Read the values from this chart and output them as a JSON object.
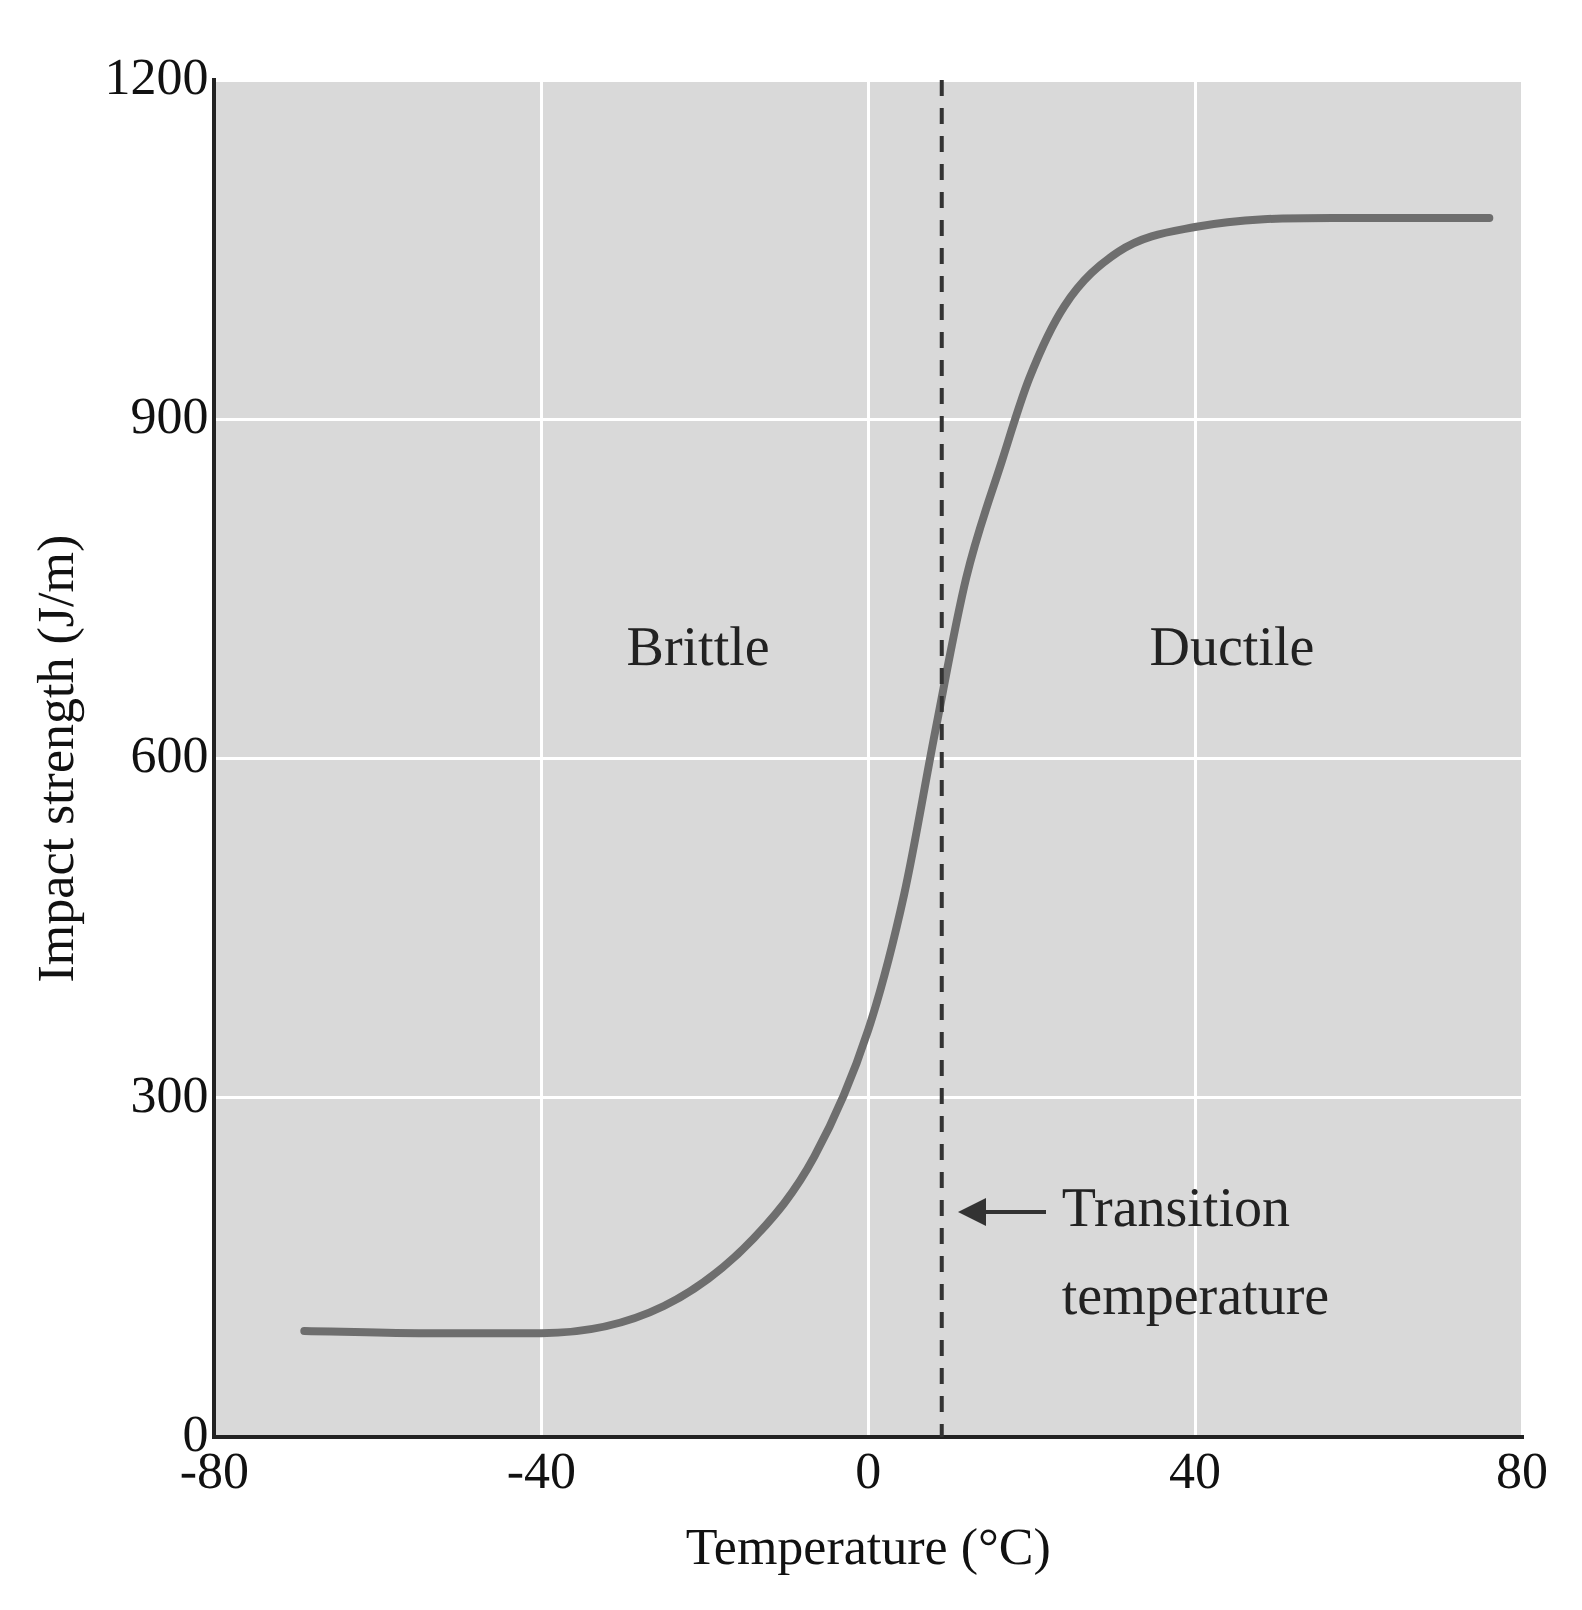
{
  "chart_data": {
    "type": "line",
    "xlabel": "Temperature (°C)",
    "ylabel": "Impact strength (J/m)",
    "xlim": [
      -80,
      80
    ],
    "xticks": [
      -80,
      -40,
      0,
      40,
      80
    ],
    "ylim": [
      0,
      1200
    ],
    "yticks": [
      0,
      300,
      600,
      900,
      1200
    ],
    "grid": true,
    "marker": "none",
    "line_style": "solid",
    "series": [
      {
        "color": "#6e6e6e",
        "x": [
          -69,
          -55,
          -40,
          -25,
          -14,
          -6.6,
          0,
          4.4,
          8.2,
          12,
          16.4,
          19.7,
          24,
          30.6,
          40,
          56.8,
          76
        ],
        "values": [
          94,
          92,
          92,
          116,
          176,
          248,
          360,
          480,
          624,
          760,
          864,
          936,
          1000,
          1048,
          1070,
          1078,
          1078
        ]
      }
    ],
    "ref_lines": [
      {
        "axis": "x",
        "value": 9,
        "color": "#333333",
        "line_style": "dashed"
      }
    ],
    "annotations": [
      "Brittle",
      "Ductile",
      {
        "text": "Transition temperature",
        "x": 9,
        "y": 200
      }
    ]
  }
}
